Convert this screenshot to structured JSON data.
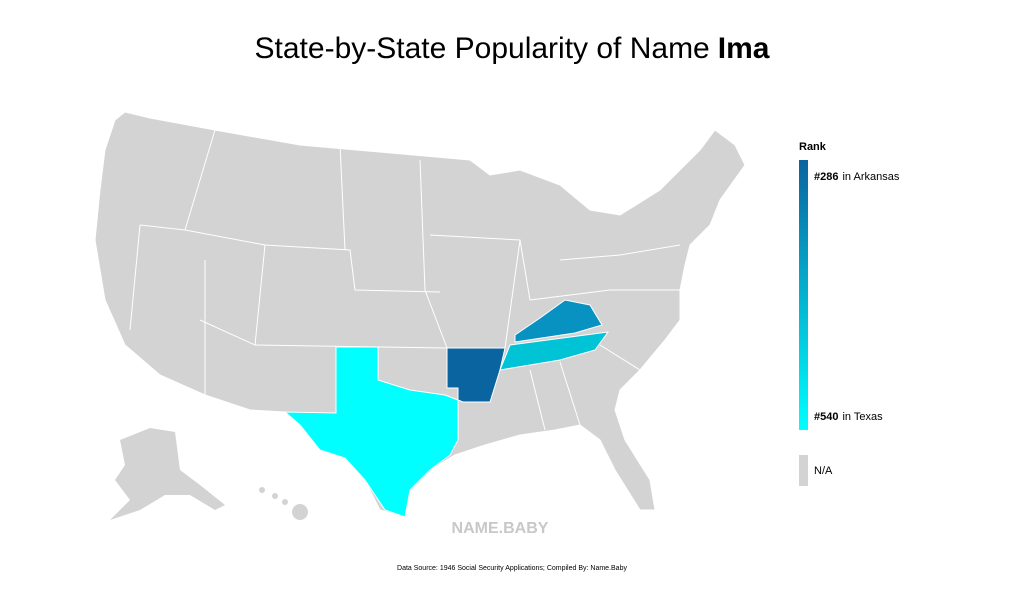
{
  "title": {
    "text": "State-by-State Popularity of Name",
    "name": "Ima"
  },
  "legend": {
    "title": "Rank",
    "top": {
      "rank": "#286",
      "label": "in Arkansas"
    },
    "bottom": {
      "rank": "#540",
      "label": "in Texas"
    },
    "na": "N/A",
    "colors": [
      "#0a64a0",
      "#00ffff"
    ],
    "na_color": "#d3d3d3"
  },
  "watermark": "NAME.BABY",
  "footer": "Data Source: 1946 Social Security Applications; Compiled By: Name.Baby"
}
